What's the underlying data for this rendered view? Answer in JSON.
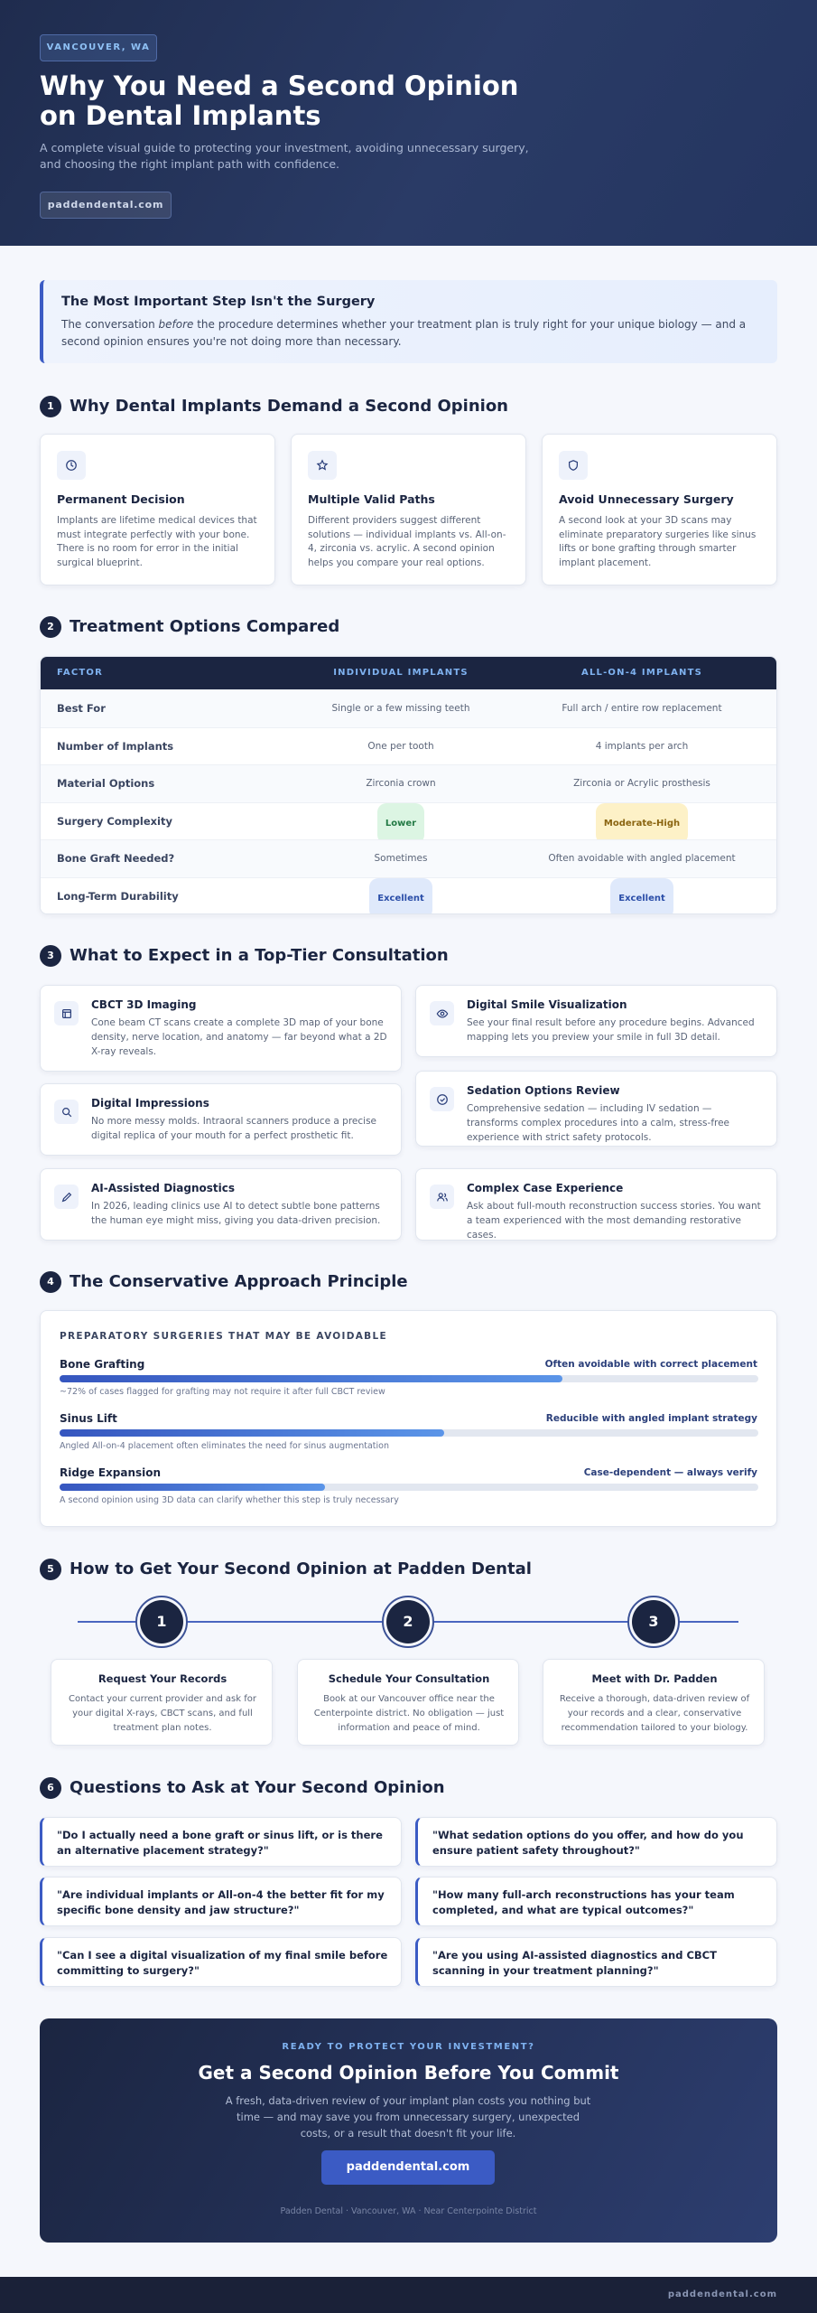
{
  "header": {
    "badge": "VANCOUVER, WA",
    "title_lines": [
      "Why You Need a Second Opinion",
      "on Dental Implants"
    ],
    "subtitle_lines": [
      "A complete visual guide to protecting your investment, avoiding unnecessary surgery,",
      "and choosing the right implant path with confidence."
    ],
    "link": "paddendental.com"
  },
  "callout": {
    "title": "The Most Important Step Isn't the Surgery",
    "text_before": "The conversation ",
    "emphasis": "before",
    "text_after": " the procedure determines whether your treatment plan is truly right for your unique biology — and a second opinion ensures you're not doing more than necessary."
  },
  "sections": [
    {
      "number": 1,
      "title": "Why Dental Implants Demand a Second Opinion"
    },
    {
      "number": 2,
      "title": "Treatment Options Compared"
    },
    {
      "number": 3,
      "title": "What to Expect in a Top-Tier Consultation"
    },
    {
      "number": 4,
      "title": "The Conservative Approach Principle"
    },
    {
      "number": 5,
      "title": "How to Get Your Second Opinion at Padden Dental"
    },
    {
      "number": 6,
      "title": "Questions to Ask at Your Second Opinion"
    }
  ],
  "why_cards": [
    {
      "title": "Permanent Decision",
      "text": "Implants are lifetime medical devices that must integrate perfectly with your bone. There is no room for error in the initial surgical blueprint."
    },
    {
      "title": "Multiple Valid Paths",
      "text": "Different providers suggest different solutions — individual implants vs. All-on-4, zirconia vs. acrylic. A second opinion helps you compare your real options."
    },
    {
      "title": "Avoid Unnecessary Surgery",
      "text": "A second look at your 3D scans may eliminate preparatory surgeries like sinus lifts or bone grafting through smarter implant placement."
    }
  ],
  "table": {
    "headers": [
      "FACTOR",
      "INDIVIDUAL IMPLANTS",
      "ALL-ON-4 IMPLANTS"
    ],
    "rows": [
      [
        "Best For",
        "Single or a few missing teeth",
        "Full arch / entire row replacement"
      ],
      [
        "Number of Implants",
        "One per tooth",
        "4 implants per arch"
      ],
      [
        "Material Options",
        "Zirconia crown",
        "Zirconia or Acrylic prosthesis"
      ],
      [
        "Surgery Complexity",
        "Lower",
        "Moderate-High"
      ],
      [
        "Bone Graft Needed?",
        "Sometimes",
        "Often avoidable with angled placement"
      ],
      [
        "Long-Term Durability",
        "Excellent",
        "Excellent"
      ]
    ]
  },
  "consultation": [
    {
      "title": "CBCT 3D Imaging",
      "text": "Cone beam CT scans create a complete 3D map of your bone density, nerve location, and anatomy — far beyond what a 2D X-ray reveals."
    },
    {
      "title": "Digital Smile Visualization",
      "text": "See your final result before any procedure begins. Advanced mapping lets you preview your smile in full 3D detail."
    },
    {
      "title": "Digital Impressions",
      "text": "No more messy molds. Intraoral scanners produce a precise digital replica of your mouth for a perfect prosthetic fit."
    },
    {
      "title": "Sedation Options Review",
      "text": "Comprehensive sedation — including IV sedation — transforms complex procedures into a calm, stress-free experience with strict safety protocols."
    },
    {
      "title": "AI-Assisted Diagnostics",
      "text": "In 2026, leading clinics use AI to detect subtle bone patterns the human eye might miss, giving you data-driven precision."
    },
    {
      "title": "Complex Case Experience",
      "text": "Ask about full-mouth reconstruction success stories. You want a team experienced with the most demanding restorative cases."
    }
  ],
  "conservative": {
    "label": "PREPARATORY SURGERIES THAT MAY BE AVOIDABLE",
    "items": [
      {
        "name": "Bone Grafting",
        "status": "Often avoidable with correct placement",
        "note": "~72% of cases flagged for grafting may not require it after full CBCT review",
        "fill": 72
      },
      {
        "name": "Sinus Lift",
        "status": "Reducible with angled implant strategy",
        "note": "Angled All-on-4 placement often eliminates the need for sinus augmentation",
        "fill": 55
      },
      {
        "name": "Ridge Expansion",
        "status": "Case-dependent — always verify",
        "note": "A second opinion using 3D data can clarify whether this step is truly necessary",
        "fill": 38
      }
    ]
  },
  "steps": [
    {
      "number": 1,
      "title": "Request Your Records",
      "text": "Contact your current provider and ask for your digital X-rays, CBCT scans, and full treatment plan notes."
    },
    {
      "number": 2,
      "title": "Schedule Your Consultation",
      "text": "Book at our Vancouver office near the Centerpointe district. No obligation — just information and peace of mind."
    },
    {
      "number": 3,
      "title": "Meet with Dr. Padden",
      "text": "Receive a thorough, data-driven review of your records and a clear, conservative recommendation tailored to your biology."
    }
  ],
  "questions": [
    "\"Do I actually need a bone graft or sinus lift, or is there an alternative placement strategy?\"",
    "\"What sedation options do you offer, and how do you ensure patient safety throughout?\"",
    "\"Are individual implants or All-on-4 the better fit for my specific bone density and jaw structure?\"",
    "\"How many full-arch reconstructions has your team completed, and what are typical outcomes?\"",
    "\"Can I see a digital visualization of my final smile before committing to surgery?\"",
    "\"Are you using AI-assisted diagnostics and CBCT scanning in your treatment planning?\""
  ],
  "cta": {
    "eyebrow": "READY TO PROTECT YOUR INVESTMENT?",
    "title": "Get a Second Opinion Before You Commit",
    "text": "A fresh, data-driven review of your implant plan costs you nothing but time — and may save you from unnecessary surgery, unexpected costs, or a result that doesn't fit your life.",
    "button": "paddendental.com",
    "footnote": "Padden Dental · Vancouver, WA · Near Centerpointe District"
  },
  "footer": "paddendental.com"
}
